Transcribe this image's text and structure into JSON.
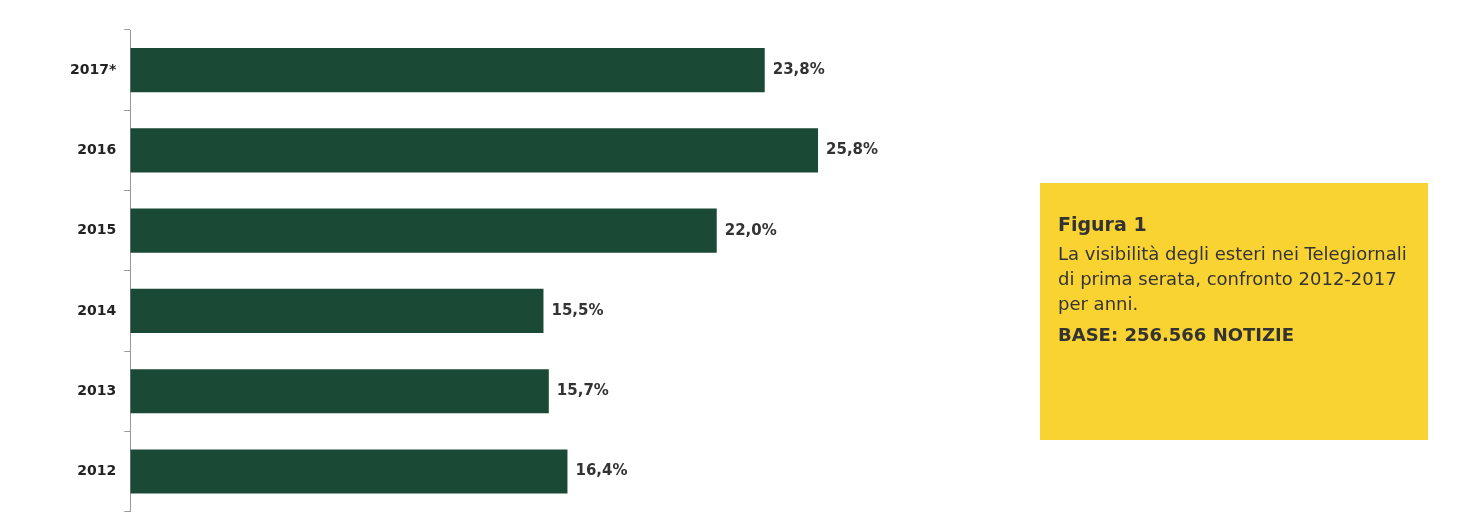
{
  "chart_data": {
    "type": "bar",
    "orientation": "horizontal",
    "title": "Figura 1",
    "subtitle": "La visibilità degli esteri nei Telegiornali di prima serata, confronto 2012-2017 per anni.",
    "annotations": [
      "BASE: 256.566 NOTIZIE"
    ],
    "categories": [
      "2017*",
      "2016",
      "2015",
      "2014",
      "2013",
      "2012"
    ],
    "values": [
      23.8,
      25.8,
      22.0,
      15.5,
      15.7,
      16.4
    ],
    "value_labels": [
      "23,8%",
      "25,8%",
      "22,0%",
      "15,5%",
      "15,7%",
      "16,4%"
    ],
    "color": "#1a4a35",
    "tick_labels": "y"
  }
}
